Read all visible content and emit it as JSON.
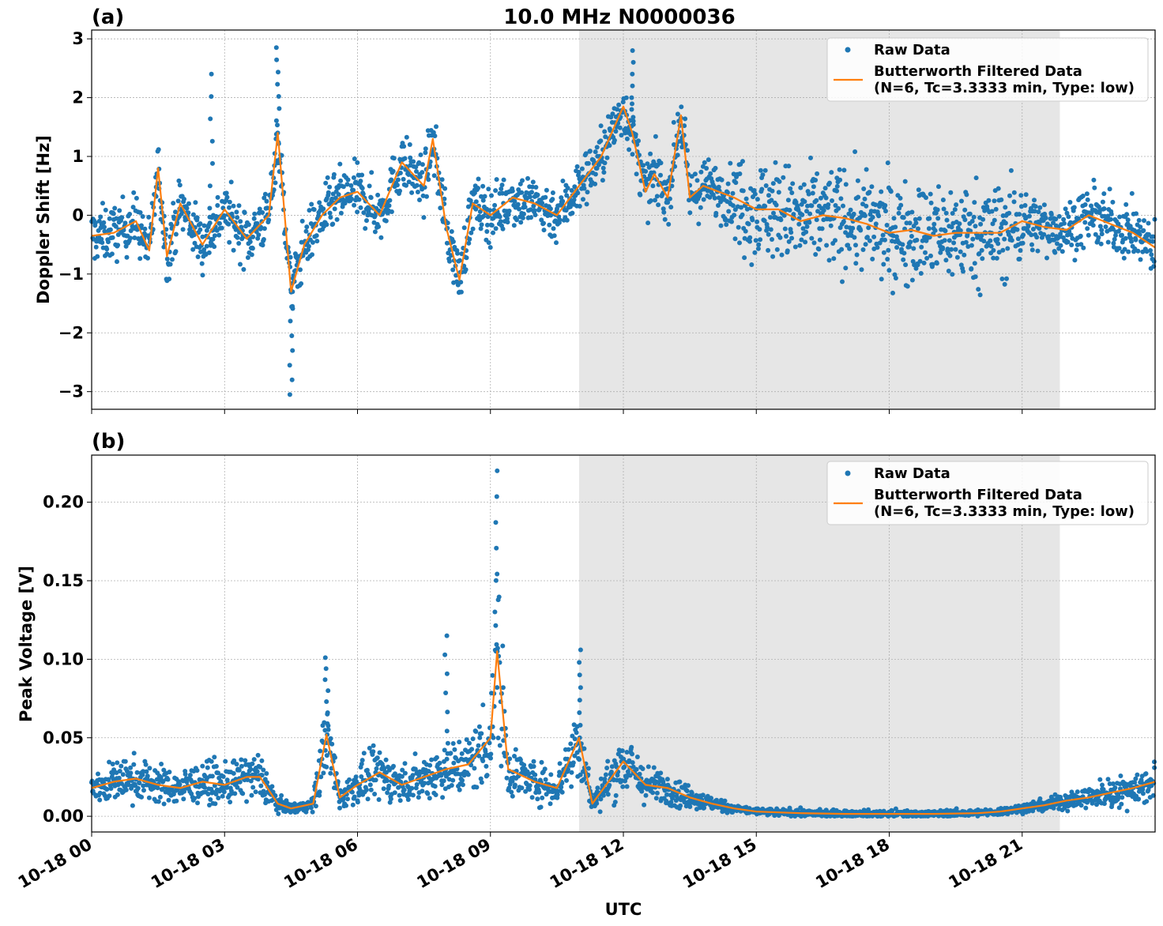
{
  "title": "10.0 MHz N0000036",
  "xlabel": "UTC",
  "x_ticks": [
    "10-18 00",
    "10-18 03",
    "10-18 06",
    "10-18 09",
    "10-18 12",
    "10-18 15",
    "10-18 18",
    "10-18 21"
  ],
  "legend": {
    "raw": "Raw Data",
    "filtered_line1": "Butterworth Filtered Data",
    "filtered_line2": "(N=6, Tc=3.3333 min, Type: low)"
  },
  "colors": {
    "raw": "#1f77b4",
    "filtered": "#ff7f0e",
    "shade": "#e6e6e6",
    "grid": "#b0b0b0"
  },
  "chart_data": [
    {
      "type": "scatter",
      "panel_label": "(a)",
      "ylabel": "Doppler Shift [Hz]",
      "xlim_hours": [
        0,
        24
      ],
      "ylim": [
        -3.3,
        3.15
      ],
      "y_ticks": [
        3,
        2,
        1,
        0,
        -1,
        -2,
        -3
      ],
      "y_tick_labels": [
        "3",
        "2",
        "1",
        "0",
        "−1",
        "−2",
        "−3"
      ],
      "shaded_region_hours": [
        11.0,
        21.85
      ],
      "series": [
        {
          "name": "Butterworth Filtered Data",
          "x_hours": [
            0,
            0.5,
            1.0,
            1.3,
            1.5,
            1.7,
            2.0,
            2.5,
            3.0,
            3.5,
            4.0,
            4.2,
            4.5,
            4.8,
            5.2,
            5.6,
            6.0,
            6.5,
            7.0,
            7.5,
            7.7,
            8.0,
            8.3,
            8.6,
            9.0,
            9.5,
            10.0,
            10.5,
            11.0,
            11.5,
            12.0,
            12.2,
            12.5,
            12.7,
            13.0,
            13.3,
            13.5,
            13.8,
            14.5,
            15.0,
            15.5,
            16.0,
            16.5,
            17.0,
            17.5,
            18.0,
            18.5,
            19.0,
            19.5,
            20.0,
            20.5,
            21.0,
            21.5,
            22.0,
            22.5,
            23.0,
            23.5,
            24.0
          ],
          "values": [
            -0.35,
            -0.3,
            -0.1,
            -0.6,
            0.8,
            -0.7,
            0.2,
            -0.5,
            0.1,
            -0.4,
            0.0,
            1.4,
            -1.3,
            -0.5,
            0.0,
            0.3,
            0.4,
            0.0,
            0.9,
            0.5,
            1.3,
            -0.2,
            -1.1,
            0.2,
            0.0,
            0.3,
            0.2,
            0.0,
            0.5,
            1.0,
            1.85,
            1.4,
            0.4,
            0.7,
            0.3,
            1.7,
            0.3,
            0.5,
            0.3,
            0.1,
            0.1,
            -0.1,
            0.0,
            -0.05,
            -0.15,
            -0.3,
            -0.25,
            -0.35,
            -0.3,
            -0.3,
            -0.3,
            -0.1,
            -0.2,
            -0.25,
            0.0,
            -0.15,
            -0.3,
            -0.55
          ]
        },
        {
          "name": "Raw Data",
          "representation": "dense scatter around filtered curve",
          "approx_spread_hz": 0.4,
          "notable_extremes": [
            {
              "x_hours": 2.7,
              "y": 2.4
            },
            {
              "x_hours": 4.2,
              "y": 2.85
            },
            {
              "x_hours": 4.5,
              "y": -3.05
            },
            {
              "x_hours": 12.2,
              "y": 2.8
            }
          ]
        }
      ]
    },
    {
      "type": "scatter",
      "panel_label": "(b)",
      "ylabel": "Peak Voltage [V]",
      "xlim_hours": [
        0,
        24
      ],
      "ylim": [
        -0.01,
        0.23
      ],
      "y_ticks": [
        0.2,
        0.15,
        0.1,
        0.05,
        0.0
      ],
      "y_tick_labels": [
        "0.20",
        "0.15",
        "0.10",
        "0.05",
        "0.00"
      ],
      "shaded_region_hours": [
        11.0,
        21.85
      ],
      "series": [
        {
          "name": "Butterworth Filtered Data",
          "x_hours": [
            0,
            0.5,
            1.0,
            1.5,
            2.0,
            2.5,
            3.0,
            3.5,
            3.8,
            4.2,
            4.5,
            5.0,
            5.3,
            5.6,
            6.0,
            6.5,
            7.0,
            7.5,
            8.0,
            8.5,
            9.0,
            9.15,
            9.4,
            10.0,
            10.5,
            11.0,
            11.3,
            12.0,
            12.5,
            13.0,
            13.5,
            14.0,
            14.5,
            15.0,
            16.0,
            17.0,
            18.0,
            19.0,
            20.0,
            20.5,
            21.0,
            21.5,
            22.0,
            22.5,
            23.0,
            23.5,
            24.0
          ],
          "values": [
            0.018,
            0.022,
            0.024,
            0.02,
            0.018,
            0.022,
            0.02,
            0.025,
            0.025,
            0.008,
            0.005,
            0.008,
            0.052,
            0.012,
            0.02,
            0.028,
            0.02,
            0.025,
            0.03,
            0.033,
            0.05,
            0.105,
            0.03,
            0.022,
            0.018,
            0.05,
            0.008,
            0.035,
            0.02,
            0.018,
            0.012,
            0.008,
            0.005,
            0.003,
            0.002,
            0.0015,
            0.0015,
            0.0015,
            0.002,
            0.003,
            0.005,
            0.007,
            0.01,
            0.012,
            0.015,
            0.018,
            0.022
          ]
        },
        {
          "name": "Raw Data",
          "representation": "dense scatter around filtered curve",
          "approx_spread_v": 0.01,
          "notable_extremes": [
            {
              "x_hours": 9.15,
              "y": 0.22
            },
            {
              "x_hours": 8.0,
              "y": 0.115
            },
            {
              "x_hours": 5.3,
              "y": 0.101
            },
            {
              "x_hours": 11.0,
              "y": 0.106
            }
          ]
        }
      ]
    }
  ]
}
